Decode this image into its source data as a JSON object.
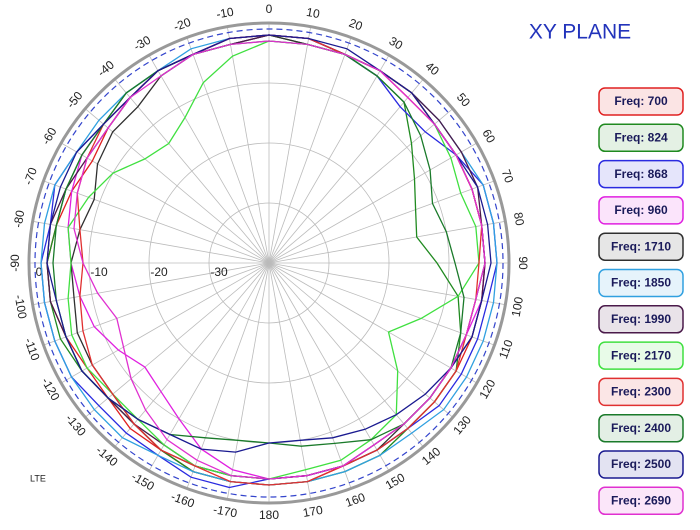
{
  "chart_data": {
    "type": "polar",
    "title": "XY PLANE",
    "note": "LTE",
    "theta": [
      -170,
      -160,
      -150,
      -140,
      -130,
      -120,
      -110,
      -100,
      -90,
      -80,
      -70,
      -60,
      -50,
      -40,
      -30,
      -20,
      -10,
      0,
      10,
      20,
      30,
      40,
      50,
      60,
      70,
      80,
      90,
      100,
      110,
      120,
      130,
      140,
      150,
      160,
      170,
      180
    ],
    "thetaticks": [
      -170,
      -160,
      -150,
      -140,
      -130,
      -120,
      -110,
      -100,
      -90,
      -80,
      -70,
      -60,
      -50,
      -40,
      -30,
      -20,
      -10,
      0,
      10,
      20,
      30,
      40,
      50,
      60,
      70,
      80,
      90,
      100,
      110,
      120,
      130,
      140,
      150,
      160,
      170,
      180
    ],
    "rlim": [
      -40,
      0
    ],
    "rticks": [
      -30,
      -20,
      -10,
      0
    ],
    "reference_circle": -1,
    "reference_color": "#3344cc",
    "legend": "right",
    "grid": true,
    "series": [
      {
        "name": "Freq: 700",
        "color": "#e02020",
        "values": [
          -3,
          -3,
          -4,
          -4,
          -5,
          -5,
          -4,
          -3,
          -3,
          -4,
          -5,
          -6,
          -5,
          -4,
          -3,
          -3,
          -2,
          -2,
          -2,
          -3,
          -3,
          -4,
          -4,
          -4,
          -4,
          -4,
          -4,
          -4,
          -4,
          -4,
          -4,
          -4,
          -4,
          -4,
          -3,
          -3
        ]
      },
      {
        "name": "Freq: 824",
        "color": "#208a20",
        "values": [
          -3,
          -3,
          -4,
          -5,
          -5,
          -4,
          -3,
          -3,
          -3,
          -4,
          -4,
          -4,
          -4,
          -3,
          -3,
          -3,
          -2,
          -2,
          -3,
          -3,
          -4,
          -5,
          -9,
          -12,
          -14,
          -15,
          -12,
          -8,
          -6,
          -4,
          -4,
          -4,
          -3,
          -3,
          -3,
          -3
        ]
      },
      {
        "name": "Freq: 868",
        "color": "#2a2ae0",
        "values": [
          -2,
          -2,
          -3,
          -3,
          -3,
          -2,
          -2,
          -2,
          -2,
          -3,
          -2,
          -3,
          -4,
          -4,
          -3,
          -3,
          -2,
          -2,
          -2,
          -3,
          -4,
          -6,
          -6,
          -4,
          -2,
          -2,
          -2,
          -3,
          -3,
          -3,
          -3,
          -4,
          -4,
          -4,
          -4,
          -4
        ]
      },
      {
        "name": "Freq: 960",
        "color": "#e020e0",
        "values": [
          -5,
          -7,
          -10,
          -12,
          -13,
          -11,
          -9,
          -8,
          -7,
          -6,
          -5,
          -4,
          -4,
          -4,
          -3,
          -3,
          -2,
          -2,
          -2,
          -3,
          -3,
          -3,
          -4,
          -4,
          -4,
          -4,
          -4,
          -4,
          -5,
          -5,
          -5,
          -5,
          -5,
          -4,
          -4,
          -4
        ]
      },
      {
        "name": "Freq: 1710",
        "color": "#303030",
        "values": [
          -4,
          -4,
          -4,
          -5,
          -6,
          -6,
          -6,
          -7,
          -7,
          -8,
          -9,
          -7,
          -6,
          -6,
          -4,
          -3,
          -3,
          -2,
          -3,
          -3,
          -3,
          -3,
          -4,
          -4,
          -4,
          -4,
          -4,
          -5,
          -5,
          -5,
          -5,
          -5,
          -4,
          -4,
          -4,
          -4
        ]
      },
      {
        "name": "Freq: 1850",
        "color": "#30a0e0",
        "values": [
          -3,
          -3,
          -3,
          -2,
          -2,
          -2,
          -2,
          -2,
          -2,
          -2,
          -2,
          -3,
          -3,
          -3,
          -3,
          -2,
          -2,
          -2,
          -2,
          -3,
          -3,
          -3,
          -3,
          -3,
          -2,
          -2,
          -2,
          -2,
          -2,
          -2,
          -2,
          -3,
          -3,
          -3,
          -3,
          -3
        ]
      },
      {
        "name": "Freq: 1990",
        "color": "#4a1a4a",
        "values": [
          -4,
          -4,
          -5,
          -5,
          -5,
          -4,
          -4,
          -3,
          -3,
          -3,
          -4,
          -5,
          -5,
          -4,
          -3,
          -3,
          -3,
          -2,
          -2,
          -3,
          -3,
          -3,
          -3,
          -3,
          -3,
          -4,
          -4,
          -4,
          -4,
          -5,
          -5,
          -5,
          -5,
          -4,
          -4,
          -4
        ]
      },
      {
        "name": "Freq: 2170",
        "color": "#40e040",
        "values": [
          -4,
          -4,
          -5,
          -6,
          -6,
          -5,
          -5,
          -6,
          -7,
          -6,
          -8,
          -10,
          -13,
          -14,
          -12,
          -8,
          -5,
          -3,
          -3,
          -3,
          -3,
          -3,
          -4,
          -5,
          -6,
          -5,
          -5,
          -8,
          -13,
          -17,
          -12,
          -7,
          -6,
          -5,
          -5,
          -4
        ]
      },
      {
        "name": "Freq: 2300",
        "color": "#e03030",
        "values": [
          -3,
          -4,
          -4,
          -5,
          -6,
          -6,
          -7,
          -8,
          -9,
          -8,
          -6,
          -5,
          -4,
          -4,
          -3,
          -3,
          -2,
          -2,
          -2,
          -3,
          -3,
          -3,
          -4,
          -4,
          -4,
          -4,
          -5,
          -5,
          -5,
          -4,
          -4,
          -4,
          -4,
          -4,
          -3,
          -3
        ]
      },
      {
        "name": "Freq: 2400",
        "color": "#1a7a2a",
        "values": [
          -10,
          -9,
          -7,
          -6,
          -5,
          -4,
          -4,
          -4,
          -4,
          -4,
          -4,
          -4,
          -4,
          -3,
          -3,
          -3,
          -3,
          -3,
          -3,
          -3,
          -4,
          -5,
          -7,
          -9,
          -11,
          -10,
          -9,
          -7,
          -6,
          -5,
          -5,
          -5,
          -6,
          -8,
          -9,
          -10
        ]
      },
      {
        "name": "Freq: 2500",
        "color": "#1a1a90",
        "values": [
          -8,
          -7,
          -7,
          -6,
          -5,
          -4,
          -4,
          -4,
          -3,
          -3,
          -3,
          -3,
          -4,
          -4,
          -3,
          -3,
          -2,
          -2,
          -2,
          -2,
          -3,
          -3,
          -4,
          -4,
          -3,
          -3,
          -3,
          -4,
          -4,
          -5,
          -6,
          -7,
          -8,
          -9,
          -10,
          -10
        ]
      },
      {
        "name": "Freq: 2690",
        "color": "#e030d0",
        "values": [
          -4,
          -5,
          -6,
          -8,
          -10,
          -12,
          -13,
          -11,
          -9,
          -7,
          -6,
          -5,
          -5,
          -4,
          -4,
          -3,
          -3,
          -3,
          -3,
          -3,
          -3,
          -4,
          -4,
          -4,
          -4,
          -4,
          -4,
          -5,
          -5,
          -5,
          -5,
          -5,
          -5,
          -4,
          -4,
          -4
        ]
      }
    ]
  }
}
